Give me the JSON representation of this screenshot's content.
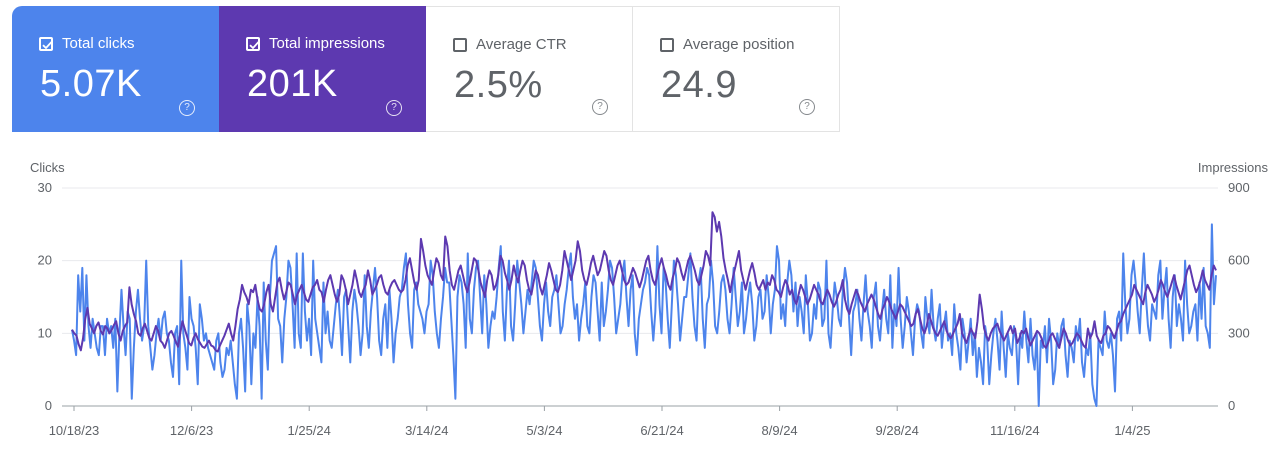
{
  "metrics": [
    {
      "label": "Total clicks",
      "value": "5.07K",
      "checked": true,
      "help": "?"
    },
    {
      "label": "Total impressions",
      "value": "201K",
      "checked": true,
      "help": "?"
    },
    {
      "label": "Average CTR",
      "value": "2.5%",
      "checked": false,
      "help": "?"
    },
    {
      "label": "Average position",
      "value": "24.9",
      "checked": false,
      "help": "?"
    }
  ],
  "colors": {
    "clicks": "#4d84ec",
    "impressions": "#5d39b0",
    "grid": "#e8eaed",
    "axis_text": "#5f6368"
  },
  "chart_data": {
    "type": "line",
    "title": "",
    "ylabel_left": "Clicks",
    "ylabel_right": "Impressions",
    "ylim_left": [
      0,
      30
    ],
    "ylim_right": [
      0,
      900
    ],
    "left_ticks": [
      "0",
      "10",
      "20",
      "30"
    ],
    "right_ticks": [
      "0",
      "300",
      "600",
      "900"
    ],
    "x_ticks": [
      "10/18/23",
      "12/6/23",
      "1/25/24",
      "3/14/24",
      "5/3/24",
      "6/21/24",
      "8/9/24",
      "9/28/24",
      "11/16/24",
      "1/4/25"
    ],
    "x_range": [
      "10/18/23",
      "3/1/25"
    ],
    "series": [
      {
        "name": "Total clicks",
        "axis": "left",
        "values": [
          10.5,
          9,
          7,
          18,
          13,
          19,
          9,
          18,
          11,
          8,
          12,
          10,
          8,
          7,
          11,
          11,
          7,
          12,
          10,
          11,
          8,
          12,
          2,
          10,
          16,
          11,
          7,
          13,
          12,
          1,
          8,
          13,
          16,
          12,
          9,
          11,
          20,
          11,
          8,
          5,
          7,
          10,
          12,
          9,
          12,
          13,
          10,
          9,
          6,
          4,
          10,
          11,
          3,
          20,
          10,
          8,
          5,
          15,
          12,
          11,
          8,
          3,
          14,
          12,
          9,
          10,
          8,
          7,
          6,
          5,
          9,
          10,
          6,
          4,
          5,
          8,
          7,
          9,
          6,
          3,
          1,
          10,
          12,
          8,
          2,
          14,
          11,
          3,
          10,
          8,
          15,
          11,
          1,
          17,
          9,
          5,
          15,
          20,
          21,
          22,
          12,
          11,
          6,
          12,
          15,
          20,
          19,
          14,
          8,
          21,
          10,
          8,
          21,
          13,
          9,
          12,
          7,
          20,
          12,
          10,
          8,
          6,
          17,
          10,
          13,
          9,
          8,
          11,
          14,
          16,
          12,
          7,
          15,
          16,
          11,
          6,
          13,
          16,
          14,
          11,
          7,
          10,
          18,
          11,
          8,
          13,
          16,
          19,
          15,
          9,
          7,
          12,
          14,
          8,
          16,
          12,
          6,
          10,
          12,
          15,
          16,
          19,
          21,
          14,
          10,
          8,
          16,
          17,
          14,
          13,
          12,
          10,
          13,
          14,
          20,
          18,
          13,
          10,
          8,
          12,
          15,
          19,
          17,
          17,
          12,
          7,
          1,
          15,
          18,
          17,
          14,
          8,
          21,
          12,
          10,
          16,
          19,
          20,
          15,
          10,
          18,
          14,
          8,
          11,
          13,
          12,
          15,
          19,
          22,
          13,
          9,
          16,
          20,
          11,
          9,
          14,
          20,
          17,
          14,
          10,
          13,
          16,
          14,
          17,
          20,
          19,
          15,
          11,
          9,
          14,
          17,
          13,
          11,
          15,
          16,
          18,
          14,
          10,
          11,
          14,
          16,
          19,
          21,
          15,
          12,
          14,
          9,
          12,
          14,
          17,
          11,
          10,
          15,
          18,
          17,
          13,
          9,
          17,
          11,
          13,
          16,
          20,
          19,
          15,
          10,
          12,
          14,
          18,
          20,
          15,
          11,
          16,
          18,
          10,
          7,
          12,
          14,
          16,
          17,
          19,
          18,
          13,
          9,
          13,
          22,
          14,
          10,
          19,
          17,
          12,
          8,
          14,
          20,
          18,
          14,
          9,
          12,
          15,
          15,
          18,
          21,
          15,
          11,
          9,
          17,
          19,
          12,
          8,
          14,
          15,
          20,
          17,
          11,
          10,
          13,
          17,
          18,
          16,
          12,
          10,
          14,
          19,
          15,
          11,
          13,
          17,
          10,
          12,
          15,
          17,
          14,
          9,
          11,
          15,
          16,
          12,
          13,
          18,
          15,
          10,
          14,
          16,
          22,
          20,
          12,
          14,
          11,
          17,
          20,
          18,
          13,
          17,
          11,
          15,
          13,
          10,
          18,
          14,
          9,
          10,
          14,
          12,
          17,
          16,
          11,
          12,
          20,
          10,
          8,
          13,
          17,
          15,
          12,
          11,
          16,
          19,
          17,
          12,
          7,
          13,
          14,
          16,
          12,
          9,
          14,
          18,
          13,
          11,
          8,
          15,
          17,
          11,
          9,
          13,
          16,
          12,
          10,
          18,
          8,
          14,
          11,
          19,
          12,
          8,
          11,
          15,
          13,
          10,
          7,
          12,
          14,
          13,
          10,
          8,
          15,
          12,
          10,
          16,
          11,
          9,
          12,
          14,
          8,
          11,
          13,
          9,
          10,
          7,
          14,
          10,
          8,
          5,
          12,
          10,
          6,
          9,
          12,
          7,
          10,
          4,
          8,
          6,
          3,
          11,
          9,
          3,
          7,
          10,
          12,
          9,
          5,
          13,
          8,
          4,
          10,
          8,
          7,
          11,
          9,
          3,
          10,
          8,
          13,
          9,
          6,
          12,
          7,
          5,
          10,
          0,
          9,
          8,
          11,
          6,
          12,
          9,
          3,
          5,
          10,
          8,
          11,
          12,
          7,
          4,
          9,
          8,
          6,
          11,
          9,
          12,
          6,
          4,
          8,
          7,
          10,
          3,
          1,
          0,
          9,
          8,
          7,
          13,
          9,
          8,
          10,
          7,
          2,
          12,
          13,
          9,
          21,
          14,
          10,
          12,
          18,
          20,
          17,
          13,
          10,
          16,
          21,
          15,
          11,
          9,
          14,
          13,
          12,
          18,
          20,
          12,
          16,
          19,
          12,
          8,
          15,
          18,
          11,
          14,
          12,
          9,
          20,
          14,
          10,
          11,
          13,
          14,
          9,
          17,
          12,
          19,
          11,
          10,
          8,
          25,
          14,
          18
        ]
      },
      {
        "name": "Total impressions",
        "axis": "right",
        "values": [
          315,
          300,
          291,
          255,
          230,
          280,
          360,
          405,
          340,
          320,
          300,
          330,
          345,
          310,
          295,
          330,
          320,
          300,
          315,
          335,
          350,
          300,
          270,
          310,
          330,
          345,
          490,
          420,
          380,
          350,
          300,
          290,
          320,
          340,
          310,
          280,
          270,
          300,
          330,
          310,
          270,
          260,
          240,
          270,
          300,
          310,
          290,
          265,
          245,
          300,
          350,
          320,
          290,
          260,
          250,
          280,
          300,
          275,
          260,
          245,
          240,
          255,
          270,
          250,
          245,
          230,
          225,
          250,
          270,
          290,
          315,
          340,
          300,
          270,
          330,
          400,
          440,
          500,
          470,
          450,
          420,
          480,
          470,
          500,
          440,
          400,
          390,
          420,
          470,
          500,
          420,
          390,
          450,
          510,
          530,
          480,
          440,
          470,
          510,
          500,
          460,
          420,
          460,
          480,
          500,
          470,
          440,
          430,
          460,
          490,
          500,
          520,
          480,
          470,
          430,
          480,
          520,
          540,
          500,
          460,
          430,
          460,
          540,
          520,
          480,
          420,
          460,
          500,
          560,
          520,
          470,
          450,
          480,
          500,
          560,
          520,
          460,
          480,
          500,
          530,
          540,
          500,
          470,
          460,
          490,
          510,
          520,
          500,
          480,
          470,
          480,
          520,
          580,
          610,
          560,
          510,
          480,
          520,
          690,
          640,
          580,
          540,
          520,
          500,
          560,
          610,
          590,
          540,
          520,
          700,
          660,
          560,
          500,
          480,
          520,
          560,
          580,
          540,
          500,
          470,
          510,
          560,
          610,
          600,
          560,
          510,
          480,
          450,
          520,
          560,
          540,
          480,
          500,
          540,
          620,
          600,
          550,
          520,
          480,
          520,
          580,
          540,
          510,
          560,
          600,
          580,
          520,
          480,
          460,
          510,
          560,
          540,
          490,
          460,
          500,
          540,
          590,
          560,
          520,
          480,
          470,
          500,
          560,
          640,
          600,
          560,
          520,
          560,
          600,
          680,
          640,
          560,
          520,
          500,
          540,
          590,
          620,
          580,
          540,
          560,
          600,
          640,
          620,
          560,
          520,
          500,
          540,
          580,
          600,
          560,
          520,
          500,
          510,
          540,
          570,
          550,
          520,
          490,
          520,
          560,
          600,
          620,
          560,
          520,
          500,
          540,
          580,
          610,
          570,
          540,
          500,
          480,
          530,
          560,
          610,
          590,
          550,
          520,
          560,
          600,
          620,
          590,
          560,
          520,
          500,
          540,
          580,
          640,
          620,
          580,
          800,
          780,
          720,
          760,
          700,
          610,
          560,
          520,
          470,
          520,
          560,
          600,
          640,
          560,
          520,
          480,
          520,
          560,
          590,
          550,
          500,
          480,
          500,
          520,
          480,
          510,
          500,
          540,
          520,
          480,
          470,
          450,
          490,
          520,
          500,
          460,
          480,
          440,
          420,
          460,
          500,
          480,
          450,
          420,
          440,
          470,
          500,
          480,
          460,
          430,
          420,
          450,
          480,
          460,
          430,
          410,
          430,
          460,
          480,
          520,
          440,
          400,
          380,
          420,
          450,
          480,
          460,
          430,
          410,
          390,
          420,
          440,
          460,
          440,
          410,
          380,
          360,
          400,
          420,
          450,
          430,
          400,
          380,
          360,
          390,
          420,
          410,
          390,
          370,
          350,
          330,
          340,
          380,
          400,
          360,
          320,
          300,
          330,
          380,
          350,
          320,
          300,
          290,
          310,
          330,
          350,
          310,
          290,
          280,
          300,
          320,
          340,
          380,
          300,
          280,
          260,
          290,
          320,
          300,
          280,
          350,
          460,
          400,
          320,
          290,
          270,
          300,
          320,
          330,
          340,
          310,
          290,
          270,
          290,
          310,
          330,
          300,
          320,
          260,
          280,
          310,
          300,
          320,
          280,
          250,
          270,
          290,
          310,
          300,
          280,
          250,
          240,
          260,
          290,
          300,
          280,
          260,
          240,
          280,
          320,
          300,
          270,
          250,
          260,
          280,
          300,
          290,
          270,
          250,
          240,
          320,
          280,
          300,
          350,
          290,
          270,
          260,
          290,
          300,
          330,
          320,
          300,
          280,
          310,
          340,
          350,
          380,
          400,
          420,
          440,
          460,
          500,
          480,
          460,
          440,
          420,
          470,
          500,
          480,
          460,
          430,
          450,
          480,
          520,
          500,
          470,
          450,
          480,
          510,
          540,
          500,
          470,
          440,
          480,
          520,
          560,
          580,
          540,
          500,
          470,
          490,
          520,
          560,
          520,
          500,
          480,
          540,
          580,
          560
        ]
      }
    ]
  }
}
